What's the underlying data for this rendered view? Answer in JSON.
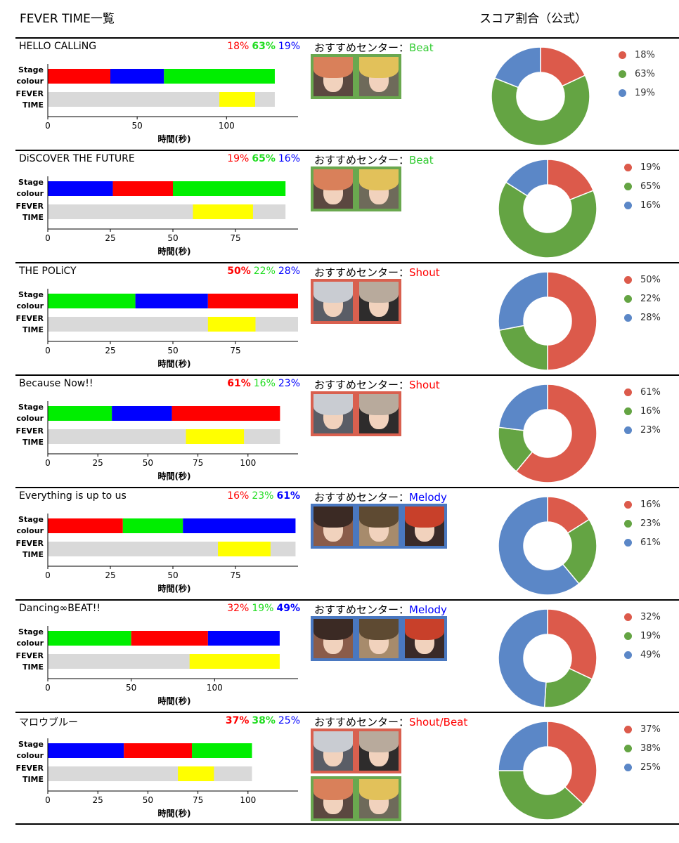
{
  "header": {
    "left_title": "FEVER TIME一覧",
    "right_title": "スコア割合（公式）"
  },
  "labels": {
    "stage": [
      "Stage",
      "colour"
    ],
    "fever": [
      "FEVER",
      "TIME"
    ],
    "xlabel": "時間(秒)",
    "rec_prefix": "おすすめセンター："
  },
  "colors": {
    "red": "#ff0000",
    "green": "#00ee00",
    "blue": "#0000ff",
    "yellow": "#ffff00",
    "gray": "#d9d9d9",
    "pie_red": "#dc5a4b",
    "pie_green": "#64a443",
    "pie_blue": "#5b87c7",
    "shout_box": "#d9604f",
    "beat_box": "#6aa84f",
    "melody_box": "#4a78c0",
    "label_beat": "#33cc33",
    "label_shout": "#ff0000",
    "label_melody": "#0000ff"
  },
  "songs": [
    {
      "title": "HELLO CALLiNG",
      "pcts": {
        "red": "18%",
        "green": "63%",
        "blue": "19%"
      },
      "bold": "green",
      "recommend": "Beat",
      "rec_type": "beat",
      "char_groups": [
        [
          "orange-hair",
          "blond-hair"
        ]
      ],
      "chart_data": {
        "type": "bar",
        "xlim": [
          0,
          140
        ],
        "ticks": [
          0,
          50,
          100
        ],
        "stage": [
          {
            "color": "red",
            "start": 0,
            "end": 35
          },
          {
            "color": "blue",
            "start": 35,
            "end": 65
          },
          {
            "color": "green",
            "start": 65,
            "end": 127
          }
        ],
        "fever_total": 127,
        "fever": [
          96,
          116
        ]
      },
      "scores": {
        "red": 18,
        "green": 63,
        "blue": 19
      }
    },
    {
      "title": "DiSCOVER THE FUTURE",
      "pcts": {
        "red": "19%",
        "green": "65%",
        "blue": "16%"
      },
      "bold": "green",
      "recommend": "Beat",
      "rec_type": "beat",
      "char_groups": [
        [
          "orange-hair",
          "blond-hair"
        ]
      ],
      "chart_data": {
        "type": "bar",
        "xlim": [
          0,
          100
        ],
        "ticks": [
          0,
          25,
          50,
          75
        ],
        "stage": [
          {
            "color": "blue",
            "start": 0,
            "end": 26
          },
          {
            "color": "red",
            "start": 26,
            "end": 50
          },
          {
            "color": "green",
            "start": 50,
            "end": 95
          }
        ],
        "fever_total": 95,
        "fever": [
          58,
          82
        ]
      },
      "scores": {
        "red": 19,
        "green": 65,
        "blue": 16
      }
    },
    {
      "title": "THE POLiCY",
      "pcts": {
        "red": "50%",
        "green": "22%",
        "blue": "28%"
      },
      "bold": "red",
      "recommend": "Shout",
      "rec_type": "shout",
      "char_groups": [
        [
          "silver-hair",
          "ash-hair"
        ]
      ],
      "chart_data": {
        "type": "bar",
        "xlim": [
          0,
          100
        ],
        "ticks": [
          0,
          25,
          50,
          75
        ],
        "stage": [
          {
            "color": "green",
            "start": 0,
            "end": 35
          },
          {
            "color": "blue",
            "start": 35,
            "end": 64
          },
          {
            "color": "red",
            "start": 64,
            "end": 100
          }
        ],
        "fever_total": 100,
        "fever": [
          64,
          83
        ]
      },
      "scores": {
        "red": 50,
        "green": 22,
        "blue": 28
      }
    },
    {
      "title": "Because Now!!",
      "pcts": {
        "red": "61%",
        "green": "16%",
        "blue": "23%"
      },
      "bold": "red",
      "recommend": "Shout",
      "rec_type": "shout",
      "char_groups": [
        [
          "silver-hair",
          "ash-hair"
        ]
      ],
      "chart_data": {
        "type": "bar",
        "xlim": [
          0,
          125
        ],
        "ticks": [
          0,
          25,
          50,
          75,
          100
        ],
        "stage": [
          {
            "color": "green",
            "start": 0,
            "end": 32
          },
          {
            "color": "blue",
            "start": 32,
            "end": 62
          },
          {
            "color": "red",
            "start": 62,
            "end": 116
          }
        ],
        "fever_total": 116,
        "fever": [
          69,
          98
        ]
      },
      "scores": {
        "red": 61,
        "green": 16,
        "blue": 23
      }
    },
    {
      "title": "Everything is up to us",
      "pcts": {
        "red": "16%",
        "green": "23%",
        "blue": "61%"
      },
      "bold": "blue",
      "recommend": "Melody",
      "rec_type": "melody",
      "char_groups": [
        [
          "dark-hair",
          "brown-hair",
          "red-hair"
        ]
      ],
      "chart_data": {
        "type": "bar",
        "xlim": [
          0,
          100
        ],
        "ticks": [
          0,
          25,
          50,
          75
        ],
        "stage": [
          {
            "color": "red",
            "start": 0,
            "end": 30
          },
          {
            "color": "green",
            "start": 30,
            "end": 54
          },
          {
            "color": "blue",
            "start": 54,
            "end": 99
          }
        ],
        "fever_total": 99,
        "fever": [
          68,
          89
        ]
      },
      "scores": {
        "red": 16,
        "green": 23,
        "blue": 61
      }
    },
    {
      "title": "Dancing∞BEAT!!",
      "pcts": {
        "red": "32%",
        "green": "19%",
        "blue": "49%"
      },
      "bold": "blue",
      "recommend": "Melody",
      "rec_type": "melody",
      "char_groups": [
        [
          "dark-hair",
          "brown-hair",
          "red-hair"
        ]
      ],
      "chart_data": {
        "type": "bar",
        "xlim": [
          0,
          150
        ],
        "ticks": [
          0,
          50,
          100
        ],
        "stage": [
          {
            "color": "green",
            "start": 0,
            "end": 50
          },
          {
            "color": "red",
            "start": 50,
            "end": 96
          },
          {
            "color": "blue",
            "start": 96,
            "end": 139
          }
        ],
        "fever_total": 139,
        "fever": [
          85,
          139
        ]
      },
      "scores": {
        "red": 32,
        "green": 19,
        "blue": 49
      }
    },
    {
      "title": "マロウブルー",
      "pcts": {
        "red": "37%",
        "green": "38%",
        "blue": "25%"
      },
      "bold": "redgreen",
      "recommend": "Shout/Beat",
      "rec_type": "shout",
      "char_groups": [
        [
          "silver-hair",
          "ash-hair"
        ],
        [
          "orange-hair",
          "blond-hair"
        ]
      ],
      "chart_data": {
        "type": "bar",
        "xlim": [
          0,
          125
        ],
        "ticks": [
          0,
          25,
          50,
          75,
          100
        ],
        "stage": [
          {
            "color": "blue",
            "start": 0,
            "end": 38
          },
          {
            "color": "red",
            "start": 38,
            "end": 72
          },
          {
            "color": "green",
            "start": 72,
            "end": 102
          }
        ],
        "fever_total": 102,
        "fever": [
          65,
          83
        ]
      },
      "scores": {
        "red": 37,
        "green": 38,
        "blue": 25
      }
    }
  ]
}
